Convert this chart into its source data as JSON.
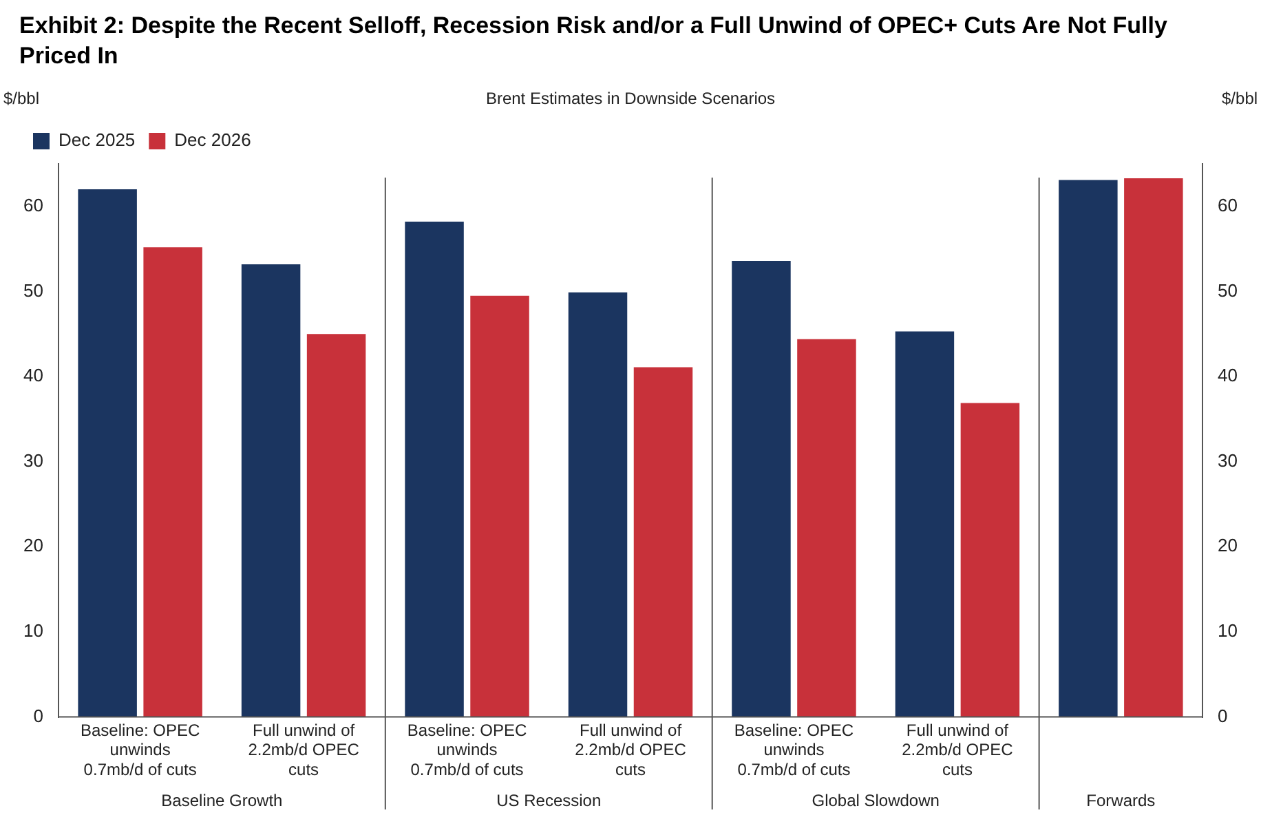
{
  "chart_data": {
    "type": "bar",
    "title": "Exhibit 2: Despite the Recent Selloff, Recession Risk and/or a Full Unwind of OPEC+ Cuts Are Not Fully Priced In",
    "subtitle": "Brent Estimates in Downside Scenarios",
    "ylabel": "$/bbl",
    "y2label": "$/bbl",
    "categories": [
      "Baseline: OPEC unwinds 0.7mb/d of cuts",
      "Full unwind of 2.2mb/d OPEC cuts",
      "Baseline: OPEC unwinds 0.7mb/d of cuts",
      "Full unwind of 2.2mb/d OPEC cuts",
      "Baseline: OPEC unwinds 0.7mb/d of cuts",
      "Full unwind of 2.2mb/d OPEC cuts",
      null
    ],
    "series": [
      {
        "name": "Dec 2025",
        "color": "#1b3560",
        "values": [
          62,
          53.2,
          58.2,
          49.9,
          53.6,
          45.3,
          63.1
        ]
      },
      {
        "name": "Dec 2026",
        "color": "#c8313a",
        "values": [
          55.2,
          45,
          49.5,
          41.1,
          44.4,
          36.9,
          63.3
        ]
      }
    ],
    "annotations": [
      "Baseline Growth",
      "US Recession",
      "Global Slowdown",
      "Forwards"
    ],
    "ylim": [
      0,
      65
    ],
    "yticks": [
      0,
      10,
      20,
      30,
      40,
      50,
      60
    ],
    "y2lim": [
      0,
      65
    ],
    "y2ticks": [
      0,
      10,
      20,
      30,
      40,
      50,
      60
    ],
    "grid": false,
    "legend": "top left"
  }
}
